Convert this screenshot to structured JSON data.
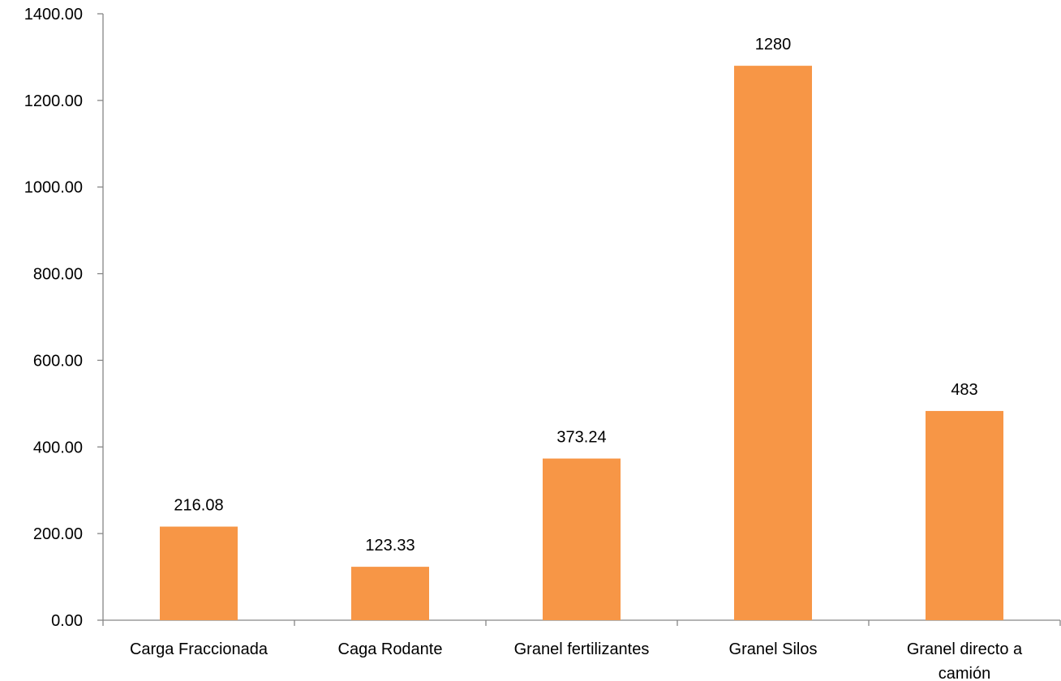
{
  "chart_data": {
    "type": "bar",
    "title": "",
    "xlabel": "",
    "ylabel": "",
    "categories": [
      "Carga Fraccionada",
      "Caga Rodante",
      "Granel fertilizantes",
      "Granel Silos",
      "Granel directo a camión"
    ],
    "values": [
      216.08,
      123.33,
      373.24,
      1280,
      483
    ],
    "data_labels": [
      "216.08",
      "123.33",
      "373.24",
      "1280",
      "483"
    ],
    "ylim": [
      0,
      1400
    ],
    "yticks": [
      0,
      200,
      400,
      600,
      800,
      1000,
      1200,
      1400
    ],
    "ytick_labels": [
      "0.00",
      "200.00",
      "400.00",
      "600.00",
      "800.00",
      "1000.00",
      "1200.00",
      "1400.00"
    ],
    "bar_color": "#F79646",
    "axis_color": "#868686",
    "grid": false,
    "legend": "none"
  }
}
